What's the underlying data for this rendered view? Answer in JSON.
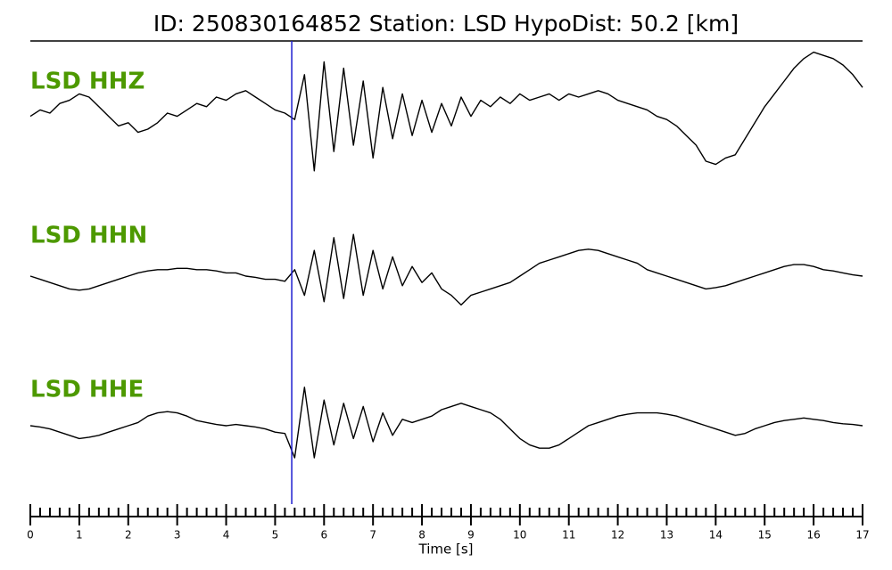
{
  "chart_data": {
    "type": "line",
    "title": "ID: 250830164852   Station: LSD   HypoDist:    50.2 [km]",
    "xlabel": "Time [s]",
    "xlim": [
      0,
      17
    ],
    "xticks": [
      0,
      1,
      2,
      3,
      4,
      5,
      6,
      7,
      8,
      9,
      10,
      11,
      12,
      13,
      14,
      15,
      16,
      17
    ],
    "minor_xticks": [
      0.2,
      0.4,
      0.6,
      0.8,
      1.2,
      1.4,
      1.6,
      1.8,
      2.2,
      2.4,
      2.6,
      2.8,
      3.2,
      3.4,
      3.6,
      3.8,
      4.2,
      4.4,
      4.6,
      4.8,
      5.2,
      5.4,
      5.6,
      5.8,
      6.2,
      6.4,
      6.6,
      6.8,
      7.2,
      7.4,
      7.6,
      7.8,
      8.2,
      8.4,
      8.6,
      8.8,
      9.2,
      9.4,
      9.6,
      9.8,
      10.2,
      10.4,
      10.6,
      10.8,
      11.2,
      11.4,
      11.6,
      11.8,
      12.2,
      12.4,
      12.6,
      12.8,
      13.2,
      13.4,
      13.6,
      13.8,
      14.2,
      14.4,
      14.6,
      14.8,
      15.2,
      15.4,
      15.6,
      15.8,
      16.2,
      16.4,
      16.6,
      16.8
    ],
    "pick_time": 5.34,
    "pick_color": "#1f1fd0",
    "label_color": "#4d9900",
    "x": [
      0,
      0.2,
      0.4,
      0.6,
      0.8,
      1,
      1.2,
      1.4,
      1.6,
      1.8,
      2,
      2.2,
      2.4,
      2.6,
      2.8,
      3,
      3.2,
      3.4,
      3.6,
      3.8,
      4,
      4.2,
      4.4,
      4.6,
      4.8,
      5,
      5.2,
      5.4,
      5.6,
      5.8,
      6,
      6.2,
      6.4,
      6.6,
      6.8,
      7,
      7.2,
      7.4,
      7.6,
      7.8,
      8,
      8.2,
      8.4,
      8.6,
      8.8,
      9,
      9.2,
      9.4,
      9.6,
      9.8,
      10,
      10.2,
      10.4,
      10.6,
      10.8,
      11,
      11.2,
      11.4,
      11.6,
      11.8,
      12,
      12.2,
      12.4,
      12.6,
      12.8,
      13,
      13.2,
      13.4,
      13.6,
      13.8,
      14,
      14.2,
      14.4,
      14.6,
      14.8,
      15,
      15.2,
      15.4,
      15.6,
      15.8,
      16,
      16.2,
      16.4,
      16.6,
      16.8,
      17
    ],
    "series": [
      {
        "name": "LSD HHZ",
        "color": "#000000",
        "ylim": [
          -1,
          1
        ],
        "values": [
          -0.05,
          0.05,
          0.0,
          0.15,
          0.2,
          0.3,
          0.25,
          0.1,
          -0.05,
          -0.2,
          -0.15,
          -0.3,
          -0.25,
          -0.15,
          0.0,
          -0.05,
          0.05,
          0.15,
          0.1,
          0.25,
          0.2,
          0.3,
          0.35,
          0.25,
          0.15,
          0.05,
          0.0,
          -0.1,
          0.6,
          -0.9,
          0.8,
          -0.6,
          0.7,
          -0.5,
          0.5,
          -0.7,
          0.4,
          -0.4,
          0.3,
          -0.35,
          0.2,
          -0.3,
          0.15,
          -0.2,
          0.25,
          -0.05,
          0.2,
          0.1,
          0.25,
          0.15,
          0.3,
          0.2,
          0.25,
          0.3,
          0.2,
          0.3,
          0.25,
          0.3,
          0.35,
          0.3,
          0.2,
          0.15,
          0.1,
          0.05,
          -0.05,
          -0.1,
          -0.2,
          -0.35,
          -0.5,
          -0.75,
          -0.8,
          -0.7,
          -0.65,
          -0.4,
          -0.15,
          0.1,
          0.3,
          0.5,
          0.7,
          0.85,
          0.95,
          0.9,
          0.85,
          0.75,
          0.6,
          0.4
        ]
      },
      {
        "name": "LSD HHN",
        "color": "#000000",
        "ylim": [
          -1,
          1
        ],
        "values": [
          0.0,
          -0.05,
          -0.1,
          -0.15,
          -0.2,
          -0.22,
          -0.2,
          -0.15,
          -0.1,
          -0.05,
          0.0,
          0.05,
          0.08,
          0.1,
          0.1,
          0.12,
          0.12,
          0.1,
          0.1,
          0.08,
          0.05,
          0.05,
          0.0,
          -0.02,
          -0.05,
          -0.05,
          -0.08,
          0.1,
          -0.3,
          0.4,
          -0.4,
          0.6,
          -0.35,
          0.65,
          -0.3,
          0.4,
          -0.2,
          0.3,
          -0.15,
          0.15,
          -0.1,
          0.05,
          -0.2,
          -0.3,
          -0.45,
          -0.3,
          -0.25,
          -0.2,
          -0.15,
          -0.1,
          0.0,
          0.1,
          0.2,
          0.25,
          0.3,
          0.35,
          0.4,
          0.42,
          0.4,
          0.35,
          0.3,
          0.25,
          0.2,
          0.1,
          0.05,
          0.0,
          -0.05,
          -0.1,
          -0.15,
          -0.2,
          -0.18,
          -0.15,
          -0.1,
          -0.05,
          0.0,
          0.05,
          0.1,
          0.15,
          0.18,
          0.18,
          0.15,
          0.1,
          0.08,
          0.05,
          0.02,
          0.0
        ]
      },
      {
        "name": "LSD HHE",
        "color": "#000000",
        "ylim": [
          -1,
          1
        ],
        "values": [
          0.0,
          -0.02,
          -0.05,
          -0.1,
          -0.15,
          -0.2,
          -0.18,
          -0.15,
          -0.1,
          -0.05,
          0.0,
          0.05,
          0.15,
          0.2,
          0.22,
          0.2,
          0.15,
          0.08,
          0.05,
          0.02,
          0.0,
          0.02,
          0.0,
          -0.02,
          -0.05,
          -0.1,
          -0.12,
          -0.5,
          0.6,
          -0.5,
          0.4,
          -0.3,
          0.35,
          -0.2,
          0.3,
          -0.25,
          0.2,
          -0.15,
          0.1,
          0.05,
          0.1,
          0.15,
          0.25,
          0.3,
          0.35,
          0.3,
          0.25,
          0.2,
          0.1,
          -0.05,
          -0.2,
          -0.3,
          -0.35,
          -0.35,
          -0.3,
          -0.2,
          -0.1,
          0.0,
          0.05,
          0.1,
          0.15,
          0.18,
          0.2,
          0.2,
          0.2,
          0.18,
          0.15,
          0.1,
          0.05,
          0.0,
          -0.05,
          -0.1,
          -0.15,
          -0.12,
          -0.05,
          0.0,
          0.05,
          0.08,
          0.1,
          0.12,
          0.1,
          0.08,
          0.05,
          0.03,
          0.02,
          0.0
        ]
      }
    ]
  }
}
